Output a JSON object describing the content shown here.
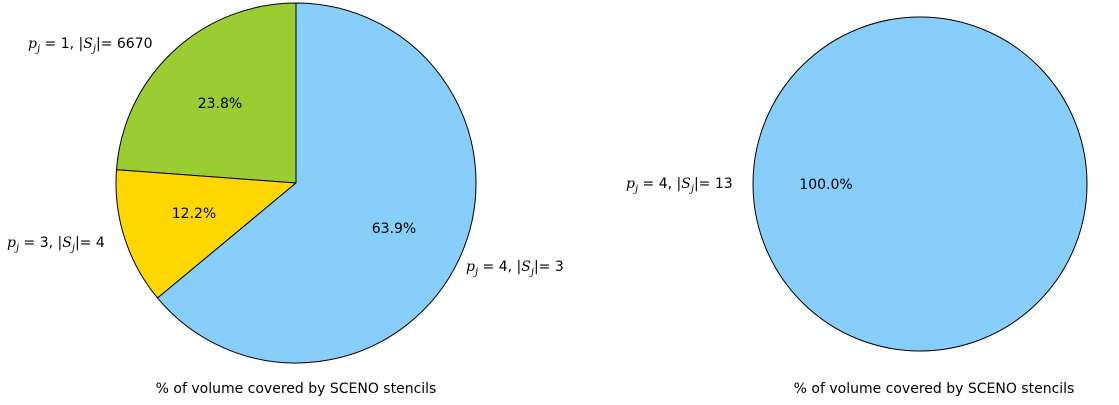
{
  "chart_data": [
    {
      "type": "pie",
      "title": "",
      "xlabel": "% of volume covered by SCENO stencils",
      "slices": [
        {
          "key": "p1",
          "p": "1",
          "s": "6670",
          "value": 23.8,
          "pct_label": "23.8%",
          "color": "#9acd32"
        },
        {
          "key": "p3",
          "p": "3",
          "s": "4",
          "value": 12.2,
          "pct_label": "12.2%",
          "color": "#ffd700"
        },
        {
          "key": "p4",
          "p": "4",
          "s": "3",
          "value": 63.9,
          "pct_label": "63.9%",
          "color": "#87cefa"
        }
      ]
    },
    {
      "type": "pie",
      "title": "",
      "xlabel": "% of volume covered by SCENO stencils",
      "slices": [
        {
          "key": "p4",
          "p": "4",
          "s": "13",
          "value": 100.0,
          "pct_label": "100.0%",
          "color": "#87cefa"
        }
      ]
    }
  ]
}
